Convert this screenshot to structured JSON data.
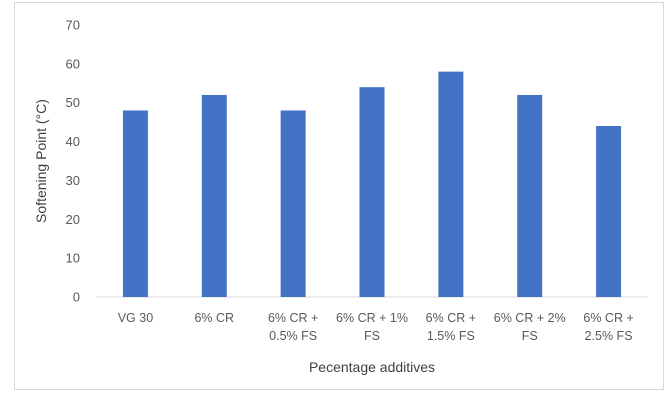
{
  "chart_data": {
    "type": "bar",
    "title": "",
    "xlabel": "Pecentage additives",
    "ylabel": "Softening Point (°C)",
    "categories": [
      [
        "VG 30"
      ],
      [
        "6% CR"
      ],
      [
        "6% CR +",
        "0.5% FS"
      ],
      [
        "6% CR + 1%",
        "FS"
      ],
      [
        "6% CR +",
        "1.5% FS"
      ],
      [
        "6% CR + 2%",
        "FS"
      ],
      [
        "6% CR +",
        "2.5% FS"
      ]
    ],
    "series": [
      {
        "values": [
          48,
          52,
          48,
          54,
          58,
          52,
          44
        ],
        "color": "#4472c4"
      }
    ],
    "ylim": [
      0,
      70
    ],
    "yticks": [
      "0",
      "10",
      "20",
      "30",
      "40",
      "50",
      "60",
      "70"
    ],
    "grid": false,
    "legend": "none"
  }
}
